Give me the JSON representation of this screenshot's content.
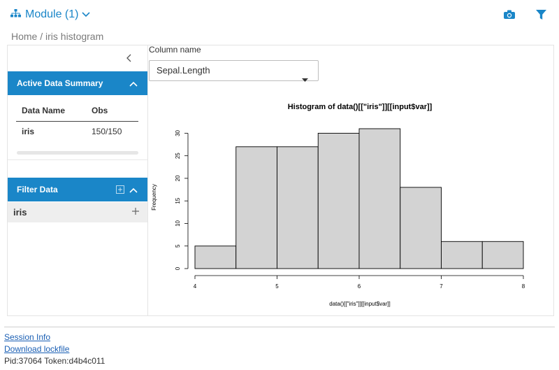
{
  "header": {
    "module_label": "Module (1)",
    "icons": {
      "module": "sitemap-icon",
      "camera": "camera-icon",
      "filter": "filter-icon"
    },
    "accent": "#1a86c8"
  },
  "breadcrumb": "Home / iris histogram",
  "sidebar": {
    "summary": {
      "title": "Active Data Summary",
      "columns": [
        "Data Name",
        "Obs"
      ],
      "rows": [
        {
          "name": "iris",
          "obs": "150/150"
        }
      ]
    },
    "filter": {
      "title": "Filter Data",
      "datasets": [
        "iris"
      ]
    }
  },
  "main": {
    "column_label": "Column name",
    "selected_column": "Sepal.Length"
  },
  "chart_data": {
    "type": "bar",
    "title": "Histogram of data()[[\"iris\"]][[input$var]]",
    "xlabel": "data()[[\"iris\"]][[input$var]]",
    "ylabel": "Frequency",
    "bins": [
      [
        4,
        4.5
      ],
      [
        4.5,
        5
      ],
      [
        5,
        5.5
      ],
      [
        5.5,
        6
      ],
      [
        6,
        6.5
      ],
      [
        6.5,
        7
      ],
      [
        7,
        7.5
      ],
      [
        7.5,
        8
      ]
    ],
    "values": [
      5,
      27,
      27,
      30,
      31,
      18,
      6,
      6
    ],
    "xticks": [
      4,
      5,
      6,
      7,
      8
    ],
    "yticks": [
      0,
      5,
      10,
      15,
      20,
      25,
      30
    ],
    "xlim": [
      4,
      8
    ],
    "ylim": [
      0,
      31
    ],
    "bar_fill": "#d3d3d3",
    "bar_stroke": "#000000",
    "grid": false
  },
  "footer": {
    "session_info": "Session Info",
    "download_lockfile": "Download lockfile",
    "pid_token": "Pid:37064 Token:d4b4c011"
  }
}
